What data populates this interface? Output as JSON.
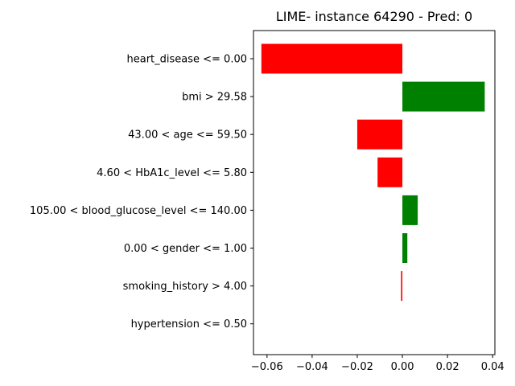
{
  "chart_data": {
    "type": "bar",
    "orientation": "horizontal",
    "title": "LIME- instance 64290 - Pred: 0",
    "xlabel": "",
    "ylabel": "",
    "xlim": [
      -0.066,
      0.041
    ],
    "xticks": [
      -0.06,
      -0.04,
      -0.02,
      0.0,
      0.02,
      0.04
    ],
    "xtick_labels": [
      "−0.06",
      "−0.04",
      "−0.02",
      "0.00",
      "0.02",
      "0.04"
    ],
    "grid": false,
    "colors": {
      "positive": "#008000",
      "negative": "#ff0000"
    },
    "categories": [
      "heart_disease <= 0.00",
      "bmi > 29.58",
      "43.00 < age <= 59.50",
      "4.60 < HbA1c_level <= 5.80",
      "105.00 < blood_glucose_level <= 140.00",
      "0.00 < gender <= 1.00",
      "smoking_history > 4.00",
      "hypertension <= 0.50"
    ],
    "values": [
      -0.0625,
      0.0365,
      -0.02,
      -0.011,
      0.0068,
      0.0022,
      -0.0006,
      0.0
    ]
  }
}
